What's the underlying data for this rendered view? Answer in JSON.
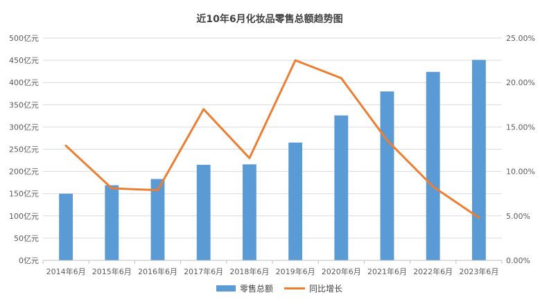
{
  "chart_data": {
    "type": "bar",
    "title": "近10年6月化妆品零售总额趋势图",
    "categories": [
      "2014年6月",
      "2015年6月",
      "2016年6月",
      "2017年6月",
      "2018年6月",
      "2019年6月",
      "2020年6月",
      "2021年6月",
      "2022年6月",
      "2023年6月"
    ],
    "series": [
      {
        "name": "零售总额",
        "type": "bar",
        "axis": "left",
        "color": "#5B9BD5",
        "values": [
          150,
          169,
          183,
          215,
          216,
          265,
          326,
          380,
          424,
          451
        ]
      },
      {
        "name": "同比增长",
        "type": "line",
        "axis": "right",
        "color": "#ED7D31",
        "values": [
          0.129,
          0.081,
          0.079,
          0.17,
          0.115,
          0.225,
          0.205,
          0.135,
          0.083,
          0.048
        ]
      }
    ],
    "y_left": {
      "min": 0,
      "max": 500,
      "step": 50,
      "tick_labels": [
        "0亿元",
        "50亿元",
        "100亿元",
        "150亿元",
        "200亿元",
        "250亿元",
        "300亿元",
        "350亿元",
        "400亿元",
        "450亿元",
        "500亿元"
      ]
    },
    "y_right": {
      "min": 0,
      "max": 0.25,
      "step": 0.05,
      "tick_labels": [
        "0.00%",
        "5.00%",
        "10.00%",
        "15.00%",
        "20.00%",
        "25.00%"
      ]
    },
    "grid": true,
    "legend": "bottom",
    "gridline_color": "#D9D9D9"
  }
}
